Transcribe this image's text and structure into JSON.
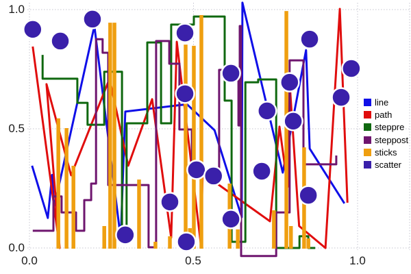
{
  "axes": {
    "x_tick_labels": [
      "0.0",
      "0.5",
      "1.0"
    ],
    "y_tick_labels": [
      "0.0",
      "0.5",
      "1.0"
    ]
  },
  "legend": {
    "position": "right",
    "items": [
      {
        "label": "line"
      },
      {
        "label": "path"
      },
      {
        "label": "steppre"
      },
      {
        "label": "steppost"
      },
      {
        "label": "sticks"
      },
      {
        "label": "scatter"
      }
    ]
  },
  "chart_data": {
    "type": "mixed",
    "title": "",
    "xlabel": "",
    "ylabel": "",
    "xlim": [
      -0.006,
      1.16
    ],
    "ylim": [
      -0.04,
      1.03
    ],
    "x_tick_values": [
      0,
      0.5,
      1.0
    ],
    "y_tick_values": [
      0,
      0.5,
      1.0
    ],
    "grid": "dotted",
    "background": "#ffffff",
    "grid_color": "#c4c4cf",
    "series": [
      {
        "name": "line",
        "type": "line",
        "color": "#0f0fe8",
        "points": [
          [
            0.008,
            0.345
          ],
          [
            0.056,
            0.126
          ],
          [
            0.069,
            0.307
          ],
          [
            0.075,
            0.17
          ],
          [
            0.198,
            0.931
          ],
          [
            0.278,
            0.04
          ],
          [
            0.292,
            0.572
          ],
          [
            0.48,
            0.603
          ],
          [
            0.564,
            0.494
          ],
          [
            0.647,
            0.129
          ],
          [
            0.649,
            1.029
          ],
          [
            0.772,
            0.316
          ],
          [
            0.843,
            0.83
          ],
          [
            0.854,
            0.417
          ],
          [
            0.96,
            0.187
          ]
        ]
      },
      {
        "name": "path",
        "type": "path",
        "color": "#e00d0d",
        "points": [
          [
            0.01,
            0.845
          ],
          [
            0.092,
            0.0
          ],
          [
            0.052,
            0.687
          ],
          [
            0.127,
            0.305
          ],
          [
            0.244,
            0.71
          ],
          [
            0.301,
            0.345
          ],
          [
            0.374,
            0.624
          ],
          [
            0.432,
            0.043
          ],
          [
            0.449,
            0.865
          ],
          [
            0.522,
            0.02
          ],
          [
            0.528,
            0.313
          ],
          [
            0.733,
            0.112
          ],
          [
            0.762,
            0.509
          ],
          [
            0.787,
            0.256
          ],
          [
            0.793,
            0.695
          ],
          [
            0.822,
            0.092
          ],
          [
            0.902,
            0.0
          ],
          [
            0.946,
            1.003
          ],
          [
            0.969,
            0.19
          ]
        ]
      },
      {
        "name": "steppre",
        "type": "steppre",
        "color": "#0f680f",
        "points": [
          [
            0.04,
            0.81
          ],
          [
            0.146,
            0.71
          ],
          [
            0.177,
            0.609
          ],
          [
            0.228,
            0.517
          ],
          [
            0.282,
            0.739
          ],
          [
            0.296,
            0.04
          ],
          [
            0.359,
            0.523
          ],
          [
            0.401,
            0.862
          ],
          [
            0.432,
            0.523
          ],
          [
            0.501,
            0.937
          ],
          [
            0.595,
            0.971
          ],
          [
            0.616,
            0.618
          ],
          [
            0.658,
            0.026
          ],
          [
            0.697,
            0.695
          ],
          [
            0.752,
            0.707
          ],
          [
            0.823,
            0.0
          ],
          [
            0.85,
            0.049
          ],
          [
            0.871,
            0.0
          ]
        ]
      },
      {
        "name": "steppost",
        "type": "steppost",
        "color": "#6e156e",
        "points": [
          [
            0.01,
            0.072
          ],
          [
            0.073,
            0.216
          ],
          [
            0.098,
            0.149
          ],
          [
            0.142,
            0.072
          ],
          [
            0.167,
            0.201
          ],
          [
            0.188,
            0.27
          ],
          [
            0.203,
            0.876
          ],
          [
            0.223,
            0.819
          ],
          [
            0.24,
            0.264
          ],
          [
            0.363,
            0.003
          ],
          [
            0.386,
            0.868
          ],
          [
            0.426,
            0.773
          ],
          [
            0.457,
            0.497
          ],
          [
            0.495,
            0.328
          ],
          [
            0.578,
            0.747
          ],
          [
            0.637,
            0.514
          ],
          [
            0.641,
            0.931
          ],
          [
            0.645,
            -0.034
          ],
          [
            0.752,
            0.149
          ],
          [
            0.793,
            0.787
          ],
          [
            0.835,
            0.351
          ],
          [
            0.935,
            0.388
          ]
        ]
      },
      {
        "name": "sticks",
        "type": "sticks",
        "color": "#ef9f10",
        "points": [
          [
            0.088,
            0.544
          ],
          [
            0.113,
            0.503
          ],
          [
            0.134,
            0.345
          ],
          [
            0.228,
            0.092
          ],
          [
            0.246,
            0.945
          ],
          [
            0.259,
            0.945
          ],
          [
            0.334,
            0.287
          ],
          [
            0.384,
            0.026
          ],
          [
            0.428,
            0.049
          ],
          [
            0.476,
            0.853
          ],
          [
            0.489,
            0.083
          ],
          [
            0.501,
            0.848
          ],
          [
            0.524,
            0.977
          ],
          [
            0.61,
            0.27
          ],
          [
            0.635,
            0.078
          ],
          [
            0.745,
            0.158
          ],
          [
            0.783,
            0.994
          ],
          [
            0.797,
            0.092
          ],
          [
            0.837,
            0.422
          ],
          [
            0.85,
            0.04
          ]
        ]
      },
      {
        "name": "scatter",
        "type": "scatter",
        "color": "#3a20aa",
        "marker_radius_px": 13.5,
        "marker_stroke": "#ffffff",
        "points": [
          [
            0.01,
            0.917
          ],
          [
            0.094,
            0.868
          ],
          [
            0.192,
            0.96
          ],
          [
            0.292,
            0.055
          ],
          [
            0.428,
            0.193
          ],
          [
            0.474,
            0.902
          ],
          [
            0.474,
            0.647
          ],
          [
            0.478,
            0.026
          ],
          [
            0.509,
            0.328
          ],
          [
            0.561,
            0.302
          ],
          [
            0.614,
            0.121
          ],
          [
            0.614,
            0.733
          ],
          [
            0.708,
            0.322
          ],
          [
            0.724,
            0.575
          ],
          [
            0.793,
            0.695
          ],
          [
            0.804,
            0.532
          ],
          [
            0.85,
            0.221
          ],
          [
            0.854,
            0.876
          ],
          [
            0.95,
            0.632
          ],
          [
            0.981,
            0.753
          ]
        ]
      }
    ]
  }
}
